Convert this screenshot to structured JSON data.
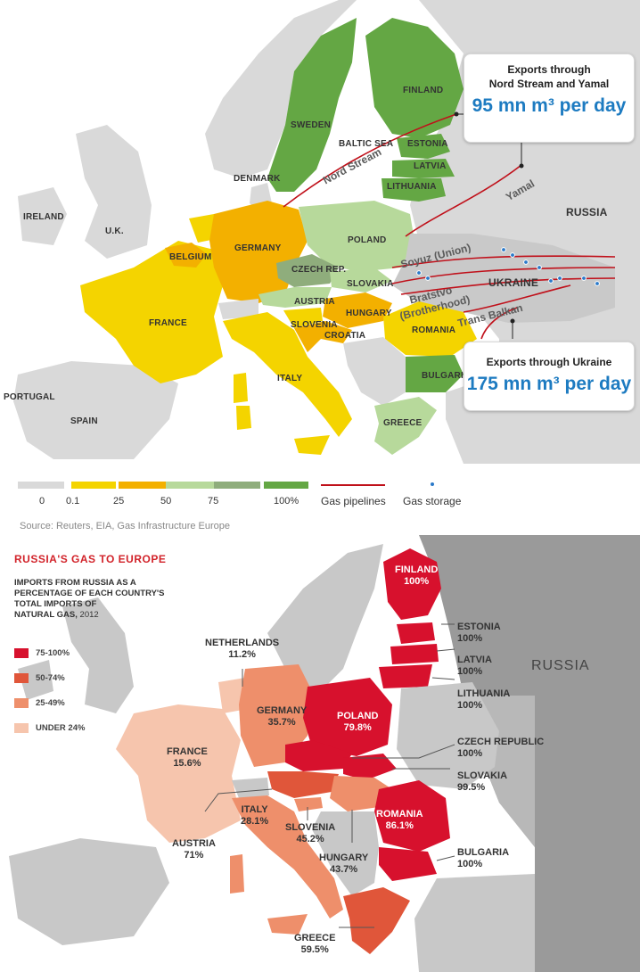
{
  "top_map": {
    "labels": {
      "finland": "FINLAND",
      "sweden": "SWEDEN",
      "estonia": "ESTONIA",
      "baltic_sea": "BALTIC SEA",
      "latvia": "LATVIA",
      "lithuania": "LITHUANIA",
      "denmark": "DENMARK",
      "ireland": "IRELAND",
      "uk": "U.K.",
      "russia": "RUSSIA",
      "poland": "POLAND",
      "germany": "GERMANY",
      "belgium": "BELGIUM",
      "czech": "CZECH REP.",
      "slovakia": "SLOVAKIA",
      "ukraine": "UKRAINE",
      "austria": "AUSTRIA",
      "france": "FRANCE",
      "hungary": "HUNGARY",
      "slovenia": "SLOVENIA",
      "croatia": "CROATIA",
      "romania": "ROMANIA",
      "italy": "ITALY",
      "bulgaria": "BULGARIA",
      "portugal": "PORTUGAL",
      "spain": "SPAIN",
      "greece": "GREECE"
    },
    "pipelines": {
      "nord_stream": "Nord Stream",
      "yamal": "Yamal",
      "soyuz": "Soyuz (Union)",
      "bratstvo": "Bratstvo",
      "brotherhood": "(Brotherhood)",
      "trans_balkan": "Trans Balkan"
    },
    "callout_north": {
      "title_line1": "Exports through",
      "title_line2": "Nord Stream and Yamal",
      "value": "95 mn m³ per day"
    },
    "callout_south": {
      "title": "Exports through Ukraine",
      "value": "175 mn m³ per day"
    },
    "legend": {
      "ticks": [
        "0",
        "0.1",
        "25",
        "50",
        "75",
        "100%"
      ],
      "pipelines_label": "Gas pipelines",
      "storage_label": "Gas storage",
      "colors": [
        "#d9d9d9",
        "#f4d400",
        "#f3b000",
        "#b7d99b",
        "#8fad7c",
        "#64a744"
      ],
      "pipeline_color": "#c0101a",
      "storage_color": "#2a79c9"
    },
    "source": "Source: Reuters, EIA, Gas Infrastructure Europe"
  },
  "bottom_map": {
    "title": "RUSSIA'S GAS TO EUROPE",
    "subtitle_line1": "IMPORTS FROM RUSSIA AS A",
    "subtitle_line2": "PERCENTAGE OF EACH COUNTRY'S",
    "subtitle_line3": "TOTAL IMPORTS OF",
    "subtitle_line4": "NATURAL GAS,",
    "subtitle_year": "2012",
    "legend": [
      {
        "label": "75-100%",
        "color": "#d7112d"
      },
      {
        "label": "50-74%",
        "color": "#e0563a"
      },
      {
        "label": "25-49%",
        "color": "#ee8f6b"
      },
      {
        "label": "UNDER 24%",
        "color": "#f6c5ad"
      }
    ],
    "russia": "RUSSIA",
    "countries": {
      "finland": {
        "name": "FINLAND",
        "value": "100%"
      },
      "estonia": {
        "name": "ESTONIA",
        "value": "100%"
      },
      "latvia": {
        "name": "LATVIA",
        "value": "100%"
      },
      "lithuania": {
        "name": "LITHUANIA",
        "value": "100%"
      },
      "netherlands": {
        "name": "NETHERLANDS",
        "value": "11.2%"
      },
      "germany": {
        "name": "GERMANY",
        "value": "35.7%"
      },
      "poland": {
        "name": "POLAND",
        "value": "79.8%"
      },
      "france": {
        "name": "FRANCE",
        "value": "15.6%"
      },
      "czech": {
        "name": "CZECH REPUBLIC",
        "value": "100%"
      },
      "slovakia": {
        "name": "SLOVAKIA",
        "value": "99.5%"
      },
      "italy": {
        "name": "ITALY",
        "value": "28.1%"
      },
      "slovenia": {
        "name": "SLOVENIA",
        "value": "45.2%"
      },
      "romania": {
        "name": "ROMANIA",
        "value": "86.1%"
      },
      "austria": {
        "name": "AUSTRIA",
        "value": "71%"
      },
      "hungary": {
        "name": "HUNGARY",
        "value": "43.7%"
      },
      "bulgaria": {
        "name": "BULGARIA",
        "value": "100%"
      },
      "greece": {
        "name": "GREECE",
        "value": "59.5%"
      }
    }
  }
}
